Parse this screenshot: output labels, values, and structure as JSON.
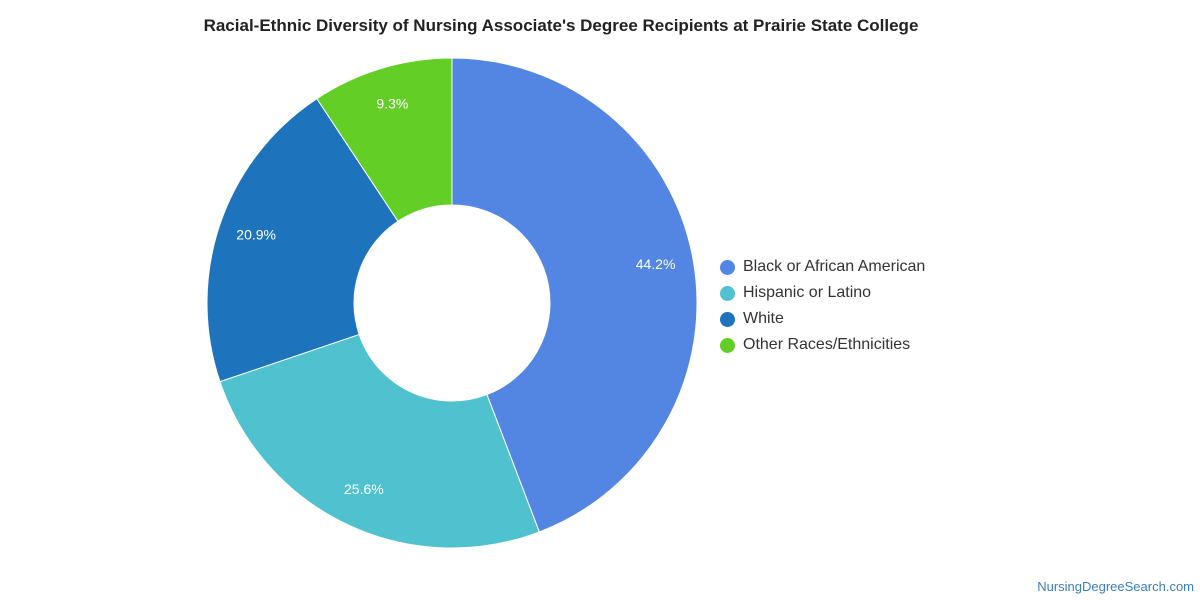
{
  "chart_data": {
    "type": "pie",
    "style": "donut",
    "title": "Racial-Ethnic Diversity of Nursing Associate's Degree Recipients at Prairie State College",
    "slices": [
      {
        "label": "Black or African American",
        "value": 44.2,
        "value_label": "44.2%",
        "color": "#5286e2"
      },
      {
        "label": "Hispanic or Latino",
        "value": 25.6,
        "value_label": "25.6%",
        "color": "#50c1ce"
      },
      {
        "label": "White",
        "value": 20.9,
        "value_label": "20.9%",
        "color": "#1e74bc"
      },
      {
        "label": "Other Races/Ethnicities",
        "value": 9.3,
        "value_label": "9.3%",
        "color": "#62ce26"
      }
    ],
    "legend_position": "right"
  },
  "watermark": "NursingDegreeSearch.com"
}
